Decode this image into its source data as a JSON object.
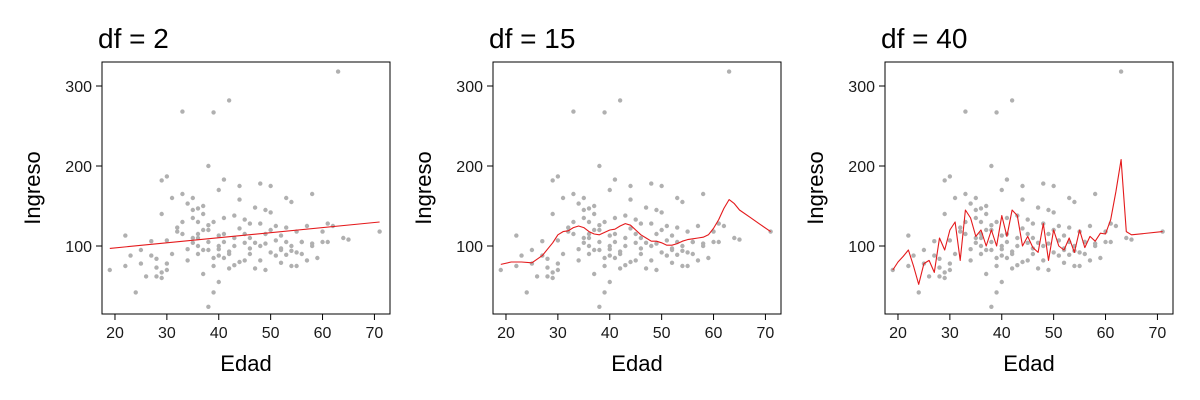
{
  "colors": {
    "points": "#b0b0b0",
    "fit_line": "#e41a1c",
    "frame": "#000000",
    "background": "#ffffff"
  },
  "chart_data": [
    {
      "type": "scatter",
      "title": "df = 2",
      "xlabel": "Edad",
      "ylabel": "Ingreso",
      "xlim": [
        17.5,
        73
      ],
      "ylim": [
        15,
        330
      ],
      "xticks": [
        20,
        30,
        40,
        50,
        60,
        70
      ],
      "yticks": [
        100,
        200,
        300
      ],
      "grid": false,
      "points": {
        "x": [
          19,
          22,
          22,
          23,
          24,
          25,
          25,
          26,
          27,
          27,
          28,
          28,
          28,
          29,
          29,
          29,
          30,
          30,
          30,
          31,
          31,
          32,
          32,
          33,
          33,
          34,
          34,
          34,
          35,
          35,
          35,
          35,
          36,
          36,
          36,
          36,
          37,
          37,
          37,
          37,
          38,
          38,
          38,
          38,
          39,
          39,
          39,
          39,
          40,
          40,
          40,
          40,
          41,
          41,
          41,
          41,
          42,
          42,
          42,
          43,
          43,
          43,
          43,
          44,
          44,
          44,
          45,
          45,
          45,
          46,
          46,
          46,
          47,
          47,
          47,
          48,
          48,
          48,
          49,
          49,
          49,
          50,
          50,
          50,
          51,
          51,
          51,
          52,
          52,
          52,
          53,
          53,
          53,
          54,
          54,
          54,
          55,
          55,
          55,
          56,
          56,
          57,
          57,
          58,
          58,
          59,
          60,
          60,
          61,
          61,
          62,
          63,
          64,
          65,
          71,
          29,
          30,
          33,
          35,
          36,
          37,
          38,
          39,
          40,
          42,
          44,
          46,
          48,
          50,
          52,
          54,
          56,
          58,
          40,
          33,
          41,
          45,
          49,
          53,
          36,
          38
        ],
        "y": [
          70,
          113,
          75,
          88,
          42,
          78,
          95,
          62,
          88,
          106,
          62,
          73,
          84,
          67,
          140,
          182,
          70,
          107,
          187,
          90,
          160,
          118,
          123,
          268,
          115,
          96,
          82,
          153,
          160,
          104,
          145,
          135,
          130,
          110,
          147,
          90,
          65,
          95,
          120,
          150,
          24,
          200,
          105,
          126,
          42,
          130,
          267,
          75,
          113,
          88,
          96,
          55,
          115,
          183,
          135,
          85,
          93,
          72,
          282,
          110,
          138,
          76,
          100,
          122,
          158,
          80,
          104,
          115,
          133,
          97,
          90,
          128,
          104,
          148,
          72,
          100,
          128,
          178,
          103,
          70,
          115,
          120,
          92,
          142,
          88,
          107,
          125,
          97,
          79,
          113,
          123,
          105,
          89,
          100,
          75,
          94,
          92,
          118,
          75,
          105,
          90,
          125,
          82,
          165,
          103,
          85,
          118,
          105,
          105,
          128,
          125,
          318,
          110,
          108,
          118,
          60,
          78,
          165,
          110,
          100,
          140,
          120,
          85,
          100,
          90,
          175,
          110,
          82,
          175,
          95,
          155,
          105,
          100,
          170,
          130,
          105,
          82,
          145,
          160,
          115,
          95
        ]
      },
      "fit": {
        "x": [
          19,
          71
        ],
        "y": [
          97,
          130
        ]
      }
    },
    {
      "type": "scatter",
      "title": "df = 15",
      "xlabel": "Edad",
      "ylabel": "Ingreso",
      "xlim": [
        17.5,
        73
      ],
      "ylim": [
        15,
        330
      ],
      "xticks": [
        20,
        30,
        40,
        50,
        60,
        70
      ],
      "yticks": [
        100,
        200,
        300
      ],
      "grid": false,
      "points": {
        "x": [
          19,
          22,
          22,
          23,
          24,
          25,
          25,
          26,
          27,
          27,
          28,
          28,
          28,
          29,
          29,
          29,
          30,
          30,
          30,
          31,
          31,
          32,
          32,
          33,
          33,
          34,
          34,
          34,
          35,
          35,
          35,
          35,
          36,
          36,
          36,
          36,
          37,
          37,
          37,
          37,
          38,
          38,
          38,
          38,
          39,
          39,
          39,
          39,
          40,
          40,
          40,
          40,
          41,
          41,
          41,
          41,
          42,
          42,
          42,
          43,
          43,
          43,
          43,
          44,
          44,
          44,
          45,
          45,
          45,
          46,
          46,
          46,
          47,
          47,
          47,
          48,
          48,
          48,
          49,
          49,
          49,
          50,
          50,
          50,
          51,
          51,
          51,
          52,
          52,
          52,
          53,
          53,
          53,
          54,
          54,
          54,
          55,
          55,
          55,
          56,
          56,
          57,
          57,
          58,
          58,
          59,
          60,
          60,
          61,
          61,
          62,
          63,
          64,
          65,
          71,
          29,
          30,
          33,
          35,
          36,
          37,
          38,
          39,
          40,
          42,
          44,
          46,
          48,
          50,
          52,
          54,
          56,
          58,
          40,
          33,
          41,
          45,
          49,
          53,
          36,
          38
        ],
        "y": [
          70,
          113,
          75,
          88,
          42,
          78,
          95,
          62,
          88,
          106,
          62,
          73,
          84,
          67,
          140,
          182,
          70,
          107,
          187,
          90,
          160,
          118,
          123,
          268,
          115,
          96,
          82,
          153,
          160,
          104,
          145,
          135,
          130,
          110,
          147,
          90,
          65,
          95,
          120,
          150,
          24,
          200,
          105,
          126,
          42,
          130,
          267,
          75,
          113,
          88,
          96,
          55,
          115,
          183,
          135,
          85,
          93,
          72,
          282,
          110,
          138,
          76,
          100,
          122,
          158,
          80,
          104,
          115,
          133,
          97,
          90,
          128,
          104,
          148,
          72,
          100,
          128,
          178,
          103,
          70,
          115,
          120,
          92,
          142,
          88,
          107,
          125,
          97,
          79,
          113,
          123,
          105,
          89,
          100,
          75,
          94,
          92,
          118,
          75,
          105,
          90,
          125,
          82,
          165,
          103,
          85,
          118,
          105,
          105,
          128,
          125,
          318,
          110,
          108,
          118,
          60,
          78,
          165,
          110,
          100,
          140,
          120,
          85,
          100,
          90,
          175,
          110,
          82,
          175,
          95,
          155,
          105,
          100,
          170,
          130,
          105,
          82,
          145,
          160,
          115,
          95
        ]
      },
      "fit": {
        "x": [
          19,
          21,
          23,
          25,
          27,
          29,
          30,
          31,
          32,
          33,
          34,
          35,
          36,
          37,
          38,
          39,
          40,
          41,
          42,
          43,
          44,
          45,
          46,
          47,
          48,
          49,
          50,
          51,
          52,
          53,
          54,
          55,
          56,
          57,
          58,
          59,
          60,
          61,
          62,
          63,
          64,
          65,
          67,
          69,
          71
        ],
        "y": [
          77,
          80,
          80,
          79,
          88,
          104,
          114,
          118,
          119,
          123,
          125,
          123,
          118,
          115,
          114,
          117,
          120,
          121,
          125,
          128,
          126,
          120,
          114,
          110,
          106,
          106,
          104,
          101,
          101,
          103,
          106,
          108,
          109,
          110,
          111,
          114,
          122,
          133,
          147,
          158,
          153,
          145,
          136,
          127,
          118
        ]
      }
    },
    {
      "type": "scatter",
      "title": "df = 40",
      "xlabel": "Edad",
      "ylabel": "Ingreso",
      "xlim": [
        17.5,
        73
      ],
      "ylim": [
        15,
        330
      ],
      "xticks": [
        20,
        30,
        40,
        50,
        60,
        70
      ],
      "yticks": [
        100,
        200,
        300
      ],
      "grid": false,
      "points": {
        "x": [
          19,
          22,
          22,
          23,
          24,
          25,
          25,
          26,
          27,
          27,
          28,
          28,
          28,
          29,
          29,
          29,
          30,
          30,
          30,
          31,
          31,
          32,
          32,
          33,
          33,
          34,
          34,
          34,
          35,
          35,
          35,
          35,
          36,
          36,
          36,
          36,
          37,
          37,
          37,
          37,
          38,
          38,
          38,
          38,
          39,
          39,
          39,
          39,
          40,
          40,
          40,
          40,
          41,
          41,
          41,
          41,
          42,
          42,
          42,
          43,
          43,
          43,
          43,
          44,
          44,
          44,
          45,
          45,
          45,
          46,
          46,
          46,
          47,
          47,
          47,
          48,
          48,
          48,
          49,
          49,
          49,
          50,
          50,
          50,
          51,
          51,
          51,
          52,
          52,
          52,
          53,
          53,
          53,
          54,
          54,
          54,
          55,
          55,
          55,
          56,
          56,
          57,
          57,
          58,
          58,
          59,
          60,
          60,
          61,
          61,
          62,
          63,
          64,
          65,
          71,
          29,
          30,
          33,
          35,
          36,
          37,
          38,
          39,
          40,
          42,
          44,
          46,
          48,
          50,
          52,
          54,
          56,
          58,
          40,
          33,
          41,
          45,
          49,
          53,
          36,
          38
        ],
        "y": [
          70,
          113,
          75,
          88,
          42,
          78,
          95,
          62,
          88,
          106,
          62,
          73,
          84,
          67,
          140,
          182,
          70,
          107,
          187,
          90,
          160,
          118,
          123,
          268,
          115,
          96,
          82,
          153,
          160,
          104,
          145,
          135,
          130,
          110,
          147,
          90,
          65,
          95,
          120,
          150,
          24,
          200,
          105,
          126,
          42,
          130,
          267,
          75,
          113,
          88,
          96,
          55,
          115,
          183,
          135,
          85,
          93,
          72,
          282,
          110,
          138,
          76,
          100,
          122,
          158,
          80,
          104,
          115,
          133,
          97,
          90,
          128,
          104,
          148,
          72,
          100,
          128,
          178,
          103,
          70,
          115,
          120,
          92,
          142,
          88,
          107,
          125,
          97,
          79,
          113,
          123,
          105,
          89,
          100,
          75,
          94,
          92,
          118,
          75,
          105,
          90,
          125,
          82,
          165,
          103,
          85,
          118,
          105,
          105,
          128,
          125,
          318,
          110,
          108,
          118,
          60,
          78,
          165,
          110,
          100,
          140,
          120,
          85,
          100,
          90,
          175,
          110,
          82,
          175,
          95,
          155,
          105,
          100,
          170,
          130,
          105,
          82,
          145,
          160,
          115,
          95
        ]
      },
      "fit": {
        "x": [
          19,
          20,
          21,
          22,
          23,
          24,
          25,
          26,
          27,
          28,
          29,
          30,
          31,
          32,
          33,
          34,
          35,
          36,
          37,
          38,
          39,
          40,
          41,
          42,
          43,
          44,
          45,
          46,
          47,
          48,
          49,
          50,
          51,
          52,
          53,
          54,
          55,
          56,
          57,
          58,
          59,
          60,
          61,
          62,
          63,
          64,
          65,
          71
        ],
        "y": [
          70,
          80,
          87,
          95,
          75,
          52,
          78,
          82,
          67,
          110,
          95,
          120,
          130,
          82,
          145,
          135,
          112,
          120,
          100,
          120,
          100,
          138,
          112,
          145,
          138,
          100,
          112,
          98,
          92,
          128,
          82,
          120,
          100,
          95,
          110,
          92,
          120,
          98,
          112,
          106,
          116,
          115,
          133,
          168,
          208,
          118,
          114,
          118
        ]
      }
    }
  ]
}
